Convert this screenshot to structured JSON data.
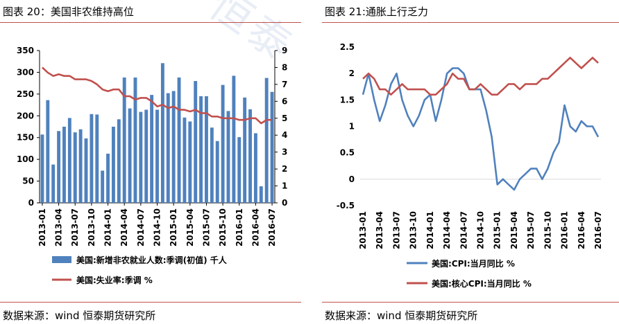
{
  "left": {
    "title": "图表 20：美国非农维持高位",
    "source": "数据来源：wind   恒泰期货研究所",
    "chart_data": {
      "type": "bar",
      "title": "图表 20：美国非农维持高位",
      "ylim": [
        0,
        350
      ],
      "y2lim": [
        0,
        9
      ],
      "yticks": [
        "0",
        "50",
        "100",
        "150",
        "200",
        "250",
        "300",
        "350"
      ],
      "y2ticks": [
        "0",
        "1",
        "2",
        "3",
        "4",
        "5",
        "6",
        "7",
        "8",
        "9"
      ],
      "xticks": [
        "2013-01",
        "2013-04",
        "2013-07",
        "2013-10",
        "2014-01",
        "2014-04",
        "2014-07",
        "2014-10",
        "2015-01",
        "2015-04",
        "2015-07",
        "2015-10",
        "2016-01",
        "2016-04",
        "2016-07"
      ],
      "grid": false,
      "legend": "bottom",
      "series": [
        {
          "name": "美国:新增非农就业人数:季调(初值) 千人",
          "type": "bar",
          "axis": "left",
          "color": "#4f81bd",
          "values": [
            157,
            236,
            88,
            165,
            175,
            195,
            162,
            169,
            148,
            204,
            203,
            74,
            113,
            175,
            192,
            288,
            217,
            288,
            209,
            214,
            248,
            214,
            321,
            252,
            257,
            288,
            196,
            187,
            280,
            245,
            245,
            173,
            142,
            271,
            211,
            292,
            151,
            242,
            215,
            160,
            38,
            287,
            255
          ]
        },
        {
          "name": "美国:失业率:季调 %",
          "type": "line",
          "axis": "right",
          "color": "#c0504d",
          "values": [
            8.0,
            7.7,
            7.5,
            7.6,
            7.5,
            7.5,
            7.3,
            7.3,
            7.3,
            7.2,
            7.0,
            6.7,
            6.6,
            6.7,
            6.7,
            6.3,
            6.3,
            6.1,
            6.2,
            6.2,
            6.0,
            5.7,
            5.8,
            5.6,
            5.7,
            5.5,
            5.5,
            5.4,
            5.5,
            5.3,
            5.3,
            5.1,
            5.1,
            5.0,
            5.0,
            5.0,
            4.9,
            4.9,
            5.0,
            5.0,
            4.7,
            4.9,
            4.9
          ]
        }
      ]
    }
  },
  "right": {
    "title": "图表 21:通胀上行乏力",
    "source": "数据来源：wind   恒泰期货研究所",
    "chart_data": {
      "type": "line",
      "title": "图表 21:通胀上行乏力",
      "ylim": [
        -0.5,
        2.5
      ],
      "yticks": [
        "-0.5",
        "0",
        "0.5",
        "1",
        "1.5",
        "2",
        "2.5"
      ],
      "xticks": [
        "2013-01",
        "2013-04",
        "2013-07",
        "2013-10",
        "2014-01",
        "2014-04",
        "2014-07",
        "2014-10",
        "2015-01",
        "2015-04",
        "2015-07",
        "2015-10",
        "2016-01",
        "2016-04",
        "2016-07"
      ],
      "grid": false,
      "legend": "bottom",
      "series": [
        {
          "name": "美国:CPI:当月同比 %",
          "color": "#4f81bd",
          "values": [
            1.6,
            2.0,
            1.5,
            1.1,
            1.4,
            1.8,
            2.0,
            1.5,
            1.2,
            1.0,
            1.2,
            1.5,
            1.6,
            1.1,
            1.5,
            2.0,
            2.1,
            2.1,
            2.0,
            1.7,
            1.7,
            1.7,
            1.3,
            0.8,
            -0.1,
            0.0,
            -0.1,
            -0.2,
            0.0,
            0.1,
            0.2,
            0.2,
            0.0,
            0.2,
            0.5,
            0.7,
            1.4,
            1.0,
            0.9,
            1.1,
            1.0,
            1.0,
            0.8
          ]
        },
        {
          "name": "美国:核心CPI:当月同比 %",
          "color": "#c0504d",
          "values": [
            1.9,
            2.0,
            1.9,
            1.7,
            1.7,
            1.6,
            1.7,
            1.8,
            1.7,
            1.7,
            1.7,
            1.7,
            1.6,
            1.6,
            1.7,
            1.8,
            2.0,
            1.9,
            1.9,
            1.7,
            1.7,
            1.8,
            1.7,
            1.6,
            1.6,
            1.7,
            1.8,
            1.8,
            1.7,
            1.8,
            1.8,
            1.8,
            1.9,
            1.9,
            2.0,
            2.1,
            2.2,
            2.3,
            2.2,
            2.1,
            2.2,
            2.3,
            2.2
          ]
        }
      ]
    }
  }
}
